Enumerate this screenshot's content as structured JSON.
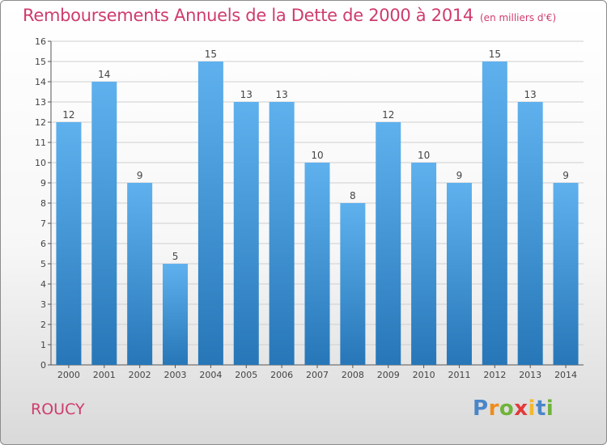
{
  "title": "Remboursements Annuels de la Dette de 2000 à 2014",
  "title_unit": "(en milliers d'€)",
  "commune": "ROUCY",
  "logo": {
    "letters": [
      "P",
      "r",
      "o",
      "x",
      "i",
      "t",
      "i"
    ],
    "colors": [
      "#4a86c8",
      "#f08c1c",
      "#6fb43a",
      "#e23a3a",
      "#f4b82c",
      "#4a86c8",
      "#6fb43a"
    ]
  },
  "colors": {
    "title": "#cf3b6e",
    "bar_top": "#5fb1ee",
    "bar_bottom": "#2777b8",
    "grid": "#cfcfcf"
  },
  "chart_data": {
    "type": "bar",
    "categories": [
      "2000",
      "2001",
      "2002",
      "2003",
      "2004",
      "2005",
      "2006",
      "2007",
      "2008",
      "2009",
      "2010",
      "2011",
      "2012",
      "2013",
      "2014"
    ],
    "values": [
      12,
      14,
      9,
      5,
      15,
      13,
      13,
      10,
      8,
      12,
      10,
      9,
      15,
      13,
      9
    ],
    "ylim": [
      0,
      16
    ],
    "yticks": [
      0,
      1,
      2,
      3,
      4,
      5,
      6,
      7,
      8,
      9,
      10,
      11,
      12,
      13,
      14,
      15,
      16
    ],
    "grid": true,
    "data_labels": true
  }
}
